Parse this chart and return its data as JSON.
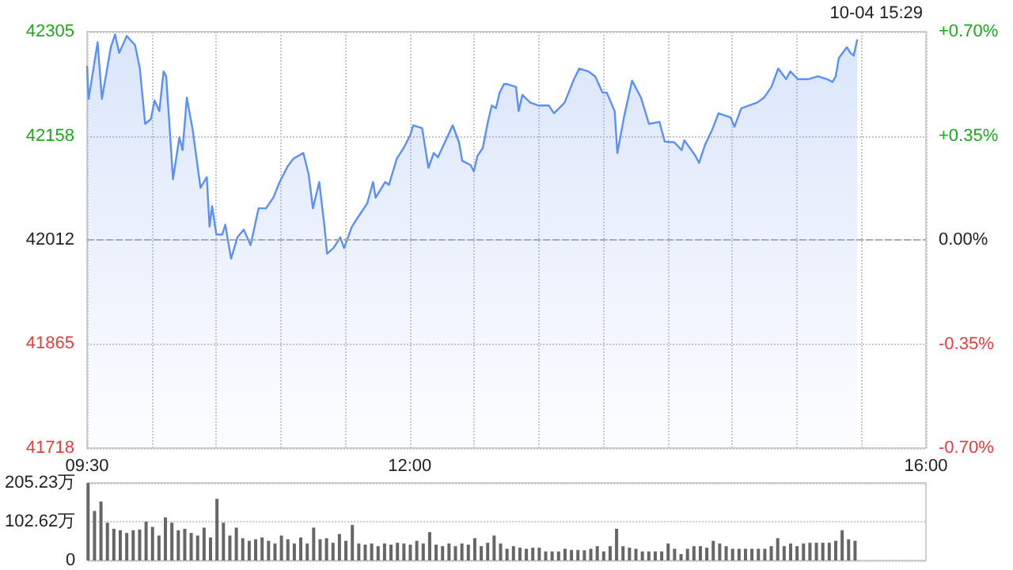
{
  "chart_data": [
    {
      "type": "area",
      "annotations": [
        "10-04 15:29"
      ],
      "color": "#5b8ff9",
      "x": [
        9.5,
        9.512,
        9.582,
        9.615,
        9.684,
        9.717,
        9.749,
        9.807,
        9.872,
        9.909,
        9.95,
        9.995,
        10.023,
        10.06,
        10.093,
        10.113,
        10.166,
        10.215,
        10.24,
        10.273,
        10.318,
        10.379,
        10.428,
        10.449,
        10.469,
        10.502,
        10.547,
        10.571,
        10.616,
        10.665,
        10.714,
        10.767,
        10.829,
        10.886,
        10.943,
        10.992,
        11.054,
        11.099,
        11.176,
        11.217,
        11.25,
        11.299,
        11.34,
        11.36,
        11.409,
        11.462,
        11.491,
        11.552,
        11.605,
        11.671,
        11.716,
        11.736,
        11.81,
        11.839,
        11.9,
        11.953,
        12.006,
        12.027,
        12.096,
        12.145,
        12.186,
        12.219,
        12.28,
        12.333,
        12.382,
        12.407,
        12.472,
        12.497,
        12.525,
        12.566,
        12.607,
        12.636,
        12.668,
        12.697,
        12.73,
        12.758,
        12.824,
        12.844,
        12.873,
        12.934,
        12.995,
        13.077,
        13.118,
        13.2,
        13.273,
        13.314,
        13.384,
        13.437,
        13.494,
        13.527,
        13.588,
        13.609,
        13.662,
        13.723,
        13.792,
        13.854,
        13.935,
        13.976,
        14.05,
        14.107,
        14.128,
        14.213,
        14.242,
        14.287,
        14.344,
        14.393,
        14.487,
        14.516,
        14.569,
        14.63,
        14.692,
        14.745,
        14.802,
        14.855,
        14.917,
        14.949,
        15.007,
        15.088,
        15.162,
        15.235,
        15.276,
        15.301,
        15.325,
        15.387,
        15.415,
        15.44,
        15.468
      ],
      "values": [
        42257,
        42210,
        42290,
        42210,
        42283,
        42301,
        42275,
        42299,
        42286,
        42253,
        42175,
        42182,
        42208,
        42193,
        42249,
        42242,
        42097,
        42156,
        42138,
        42212,
        42167,
        42085,
        42100,
        42030,
        42059,
        42019,
        42019,
        42033,
        41985,
        42015,
        42026,
        42004,
        42056,
        42056,
        42071,
        42093,
        42115,
        42126,
        42134,
        42104,
        42056,
        42093,
        42030,
        41992,
        42000,
        42015,
        42000,
        42030,
        42045,
        42063,
        42093,
        42071,
        42093,
        42089,
        42126,
        42141,
        42160,
        42173,
        42169,
        42113,
        42134,
        42128,
        42152,
        42173,
        42149,
        42123,
        42117,
        42108,
        42130,
        42141,
        42179,
        42201,
        42197,
        42219,
        42231,
        42231,
        42227,
        42193,
        42216,
        42205,
        42201,
        42201,
        42190,
        42205,
        42238,
        42253,
        42249,
        42242,
        42219,
        42219,
        42193,
        42134,
        42186,
        42236,
        42212,
        42175,
        42178,
        42150,
        42149,
        42138,
        42152,
        42130,
        42120,
        42145,
        42167,
        42190,
        42184,
        42171,
        42197,
        42201,
        42205,
        42212,
        42227,
        42253,
        42238,
        42249,
        42238,
        42238,
        42242,
        42238,
        42234,
        42242,
        42268,
        42283,
        42275,
        42271,
        42294
      ],
      "xlim": [
        9.5,
        16
      ],
      "xticks": [
        {
          "value": 9.5,
          "label": "09:30"
        },
        {
          "value": 10,
          "label": null
        },
        {
          "value": 10.5,
          "label": null
        },
        {
          "value": 11,
          "label": null
        },
        {
          "value": 11.5,
          "label": null
        },
        {
          "value": 12,
          "label": "12:00"
        },
        {
          "value": 12.5,
          "label": null
        },
        {
          "value": 13,
          "label": null
        },
        {
          "value": 13.5,
          "label": null
        },
        {
          "value": 14,
          "label": null
        },
        {
          "value": 14.5,
          "label": null
        },
        {
          "value": 15,
          "label": null
        },
        {
          "value": 15.5,
          "label": null
        },
        {
          "value": 16,
          "label": "16:00"
        }
      ],
      "ylim": [
        41718,
        42305
      ],
      "yticks": [
        41718,
        41865,
        42012,
        42158,
        42305
      ],
      "y2lim": [
        -0.7,
        0.7
      ],
      "y2ticks": [
        {
          "value": -0.7,
          "label": "-0.70%"
        },
        {
          "value": -0.35,
          "label": "-0.35%"
        },
        {
          "value": 0,
          "label": "0.00%"
        },
        {
          "value": 0.35,
          "label": "+0.35%"
        },
        {
          "value": 0.7,
          "label": "+0.70%"
        }
      ],
      "ref_lines": [
        {
          "axis": "y",
          "value": 42012,
          "line_style": "dashed"
        }
      ],
      "grid": true,
      "marker": "none"
    },
    {
      "type": "bar",
      "color": "#666666",
      "tick_labels": "y",
      "x": [
        9.5,
        9.55,
        9.6,
        9.65,
        9.7,
        9.75,
        9.8,
        9.85,
        9.9,
        9.95,
        10,
        10.05,
        10.1,
        10.15,
        10.2,
        10.25,
        10.3,
        10.35,
        10.4,
        10.45,
        10.5,
        10.55,
        10.6,
        10.65,
        10.7,
        10.75,
        10.8,
        10.85,
        10.9,
        10.95,
        11,
        11.05,
        11.1,
        11.15,
        11.2,
        11.25,
        11.3,
        11.35,
        11.4,
        11.45,
        11.5,
        11.55,
        11.6,
        11.65,
        11.7,
        11.75,
        11.8,
        11.85,
        11.9,
        11.95,
        12,
        12.05,
        12.1,
        12.15,
        12.2,
        12.25,
        12.3,
        12.35,
        12.4,
        12.45,
        12.5,
        12.55,
        12.6,
        12.65,
        12.7,
        12.75,
        12.8,
        12.85,
        12.9,
        12.95,
        13,
        13.05,
        13.1,
        13.15,
        13.2,
        13.25,
        13.3,
        13.35,
        13.4,
        13.45,
        13.5,
        13.55,
        13.6,
        13.65,
        13.7,
        13.75,
        13.8,
        13.85,
        13.9,
        13.95,
        14,
        14.05,
        14.1,
        14.15,
        14.2,
        14.25,
        14.3,
        14.35,
        14.4,
        14.45,
        14.5,
        14.55,
        14.6,
        14.65,
        14.7,
        14.75,
        14.8,
        14.85,
        14.9,
        14.95,
        15,
        15.05,
        15.1,
        15.15,
        15.2,
        15.25,
        15.3,
        15.35,
        15.4,
        15.45
      ],
      "values": [
        205,
        131,
        156,
        100,
        84,
        80,
        73,
        80,
        82,
        103,
        89,
        66,
        114,
        100,
        80,
        84,
        73,
        66,
        87,
        61,
        163,
        100,
        66,
        87,
        59,
        52,
        56,
        61,
        52,
        45,
        66,
        56,
        45,
        61,
        45,
        87,
        56,
        59,
        47,
        70,
        52,
        94,
        45,
        42,
        45,
        38,
        45,
        42,
        47,
        45,
        42,
        52,
        45,
        75,
        42,
        38,
        45,
        38,
        45,
        42,
        59,
        38,
        47,
        66,
        45,
        31,
        38,
        34,
        31,
        34,
        34,
        24,
        24,
        24,
        31,
        28,
        28,
        27,
        31,
        38,
        24,
        38,
        84,
        38,
        34,
        31,
        24,
        24,
        24,
        24,
        45,
        31,
        17,
        31,
        38,
        38,
        34,
        52,
        45,
        38,
        31,
        31,
        31,
        31,
        31,
        31,
        38,
        59,
        38,
        45,
        38,
        45,
        47,
        47,
        47,
        47,
        52,
        80,
        56,
        52
      ],
      "xlim": [
        9.5,
        16
      ],
      "ylim": [
        0,
        205.23
      ],
      "yticks": [
        0,
        {
          "value": 102.62,
          "label": "102.62万"
        },
        {
          "value": 205.23,
          "label": "205.23万"
        }
      ],
      "grid": "y"
    }
  ]
}
